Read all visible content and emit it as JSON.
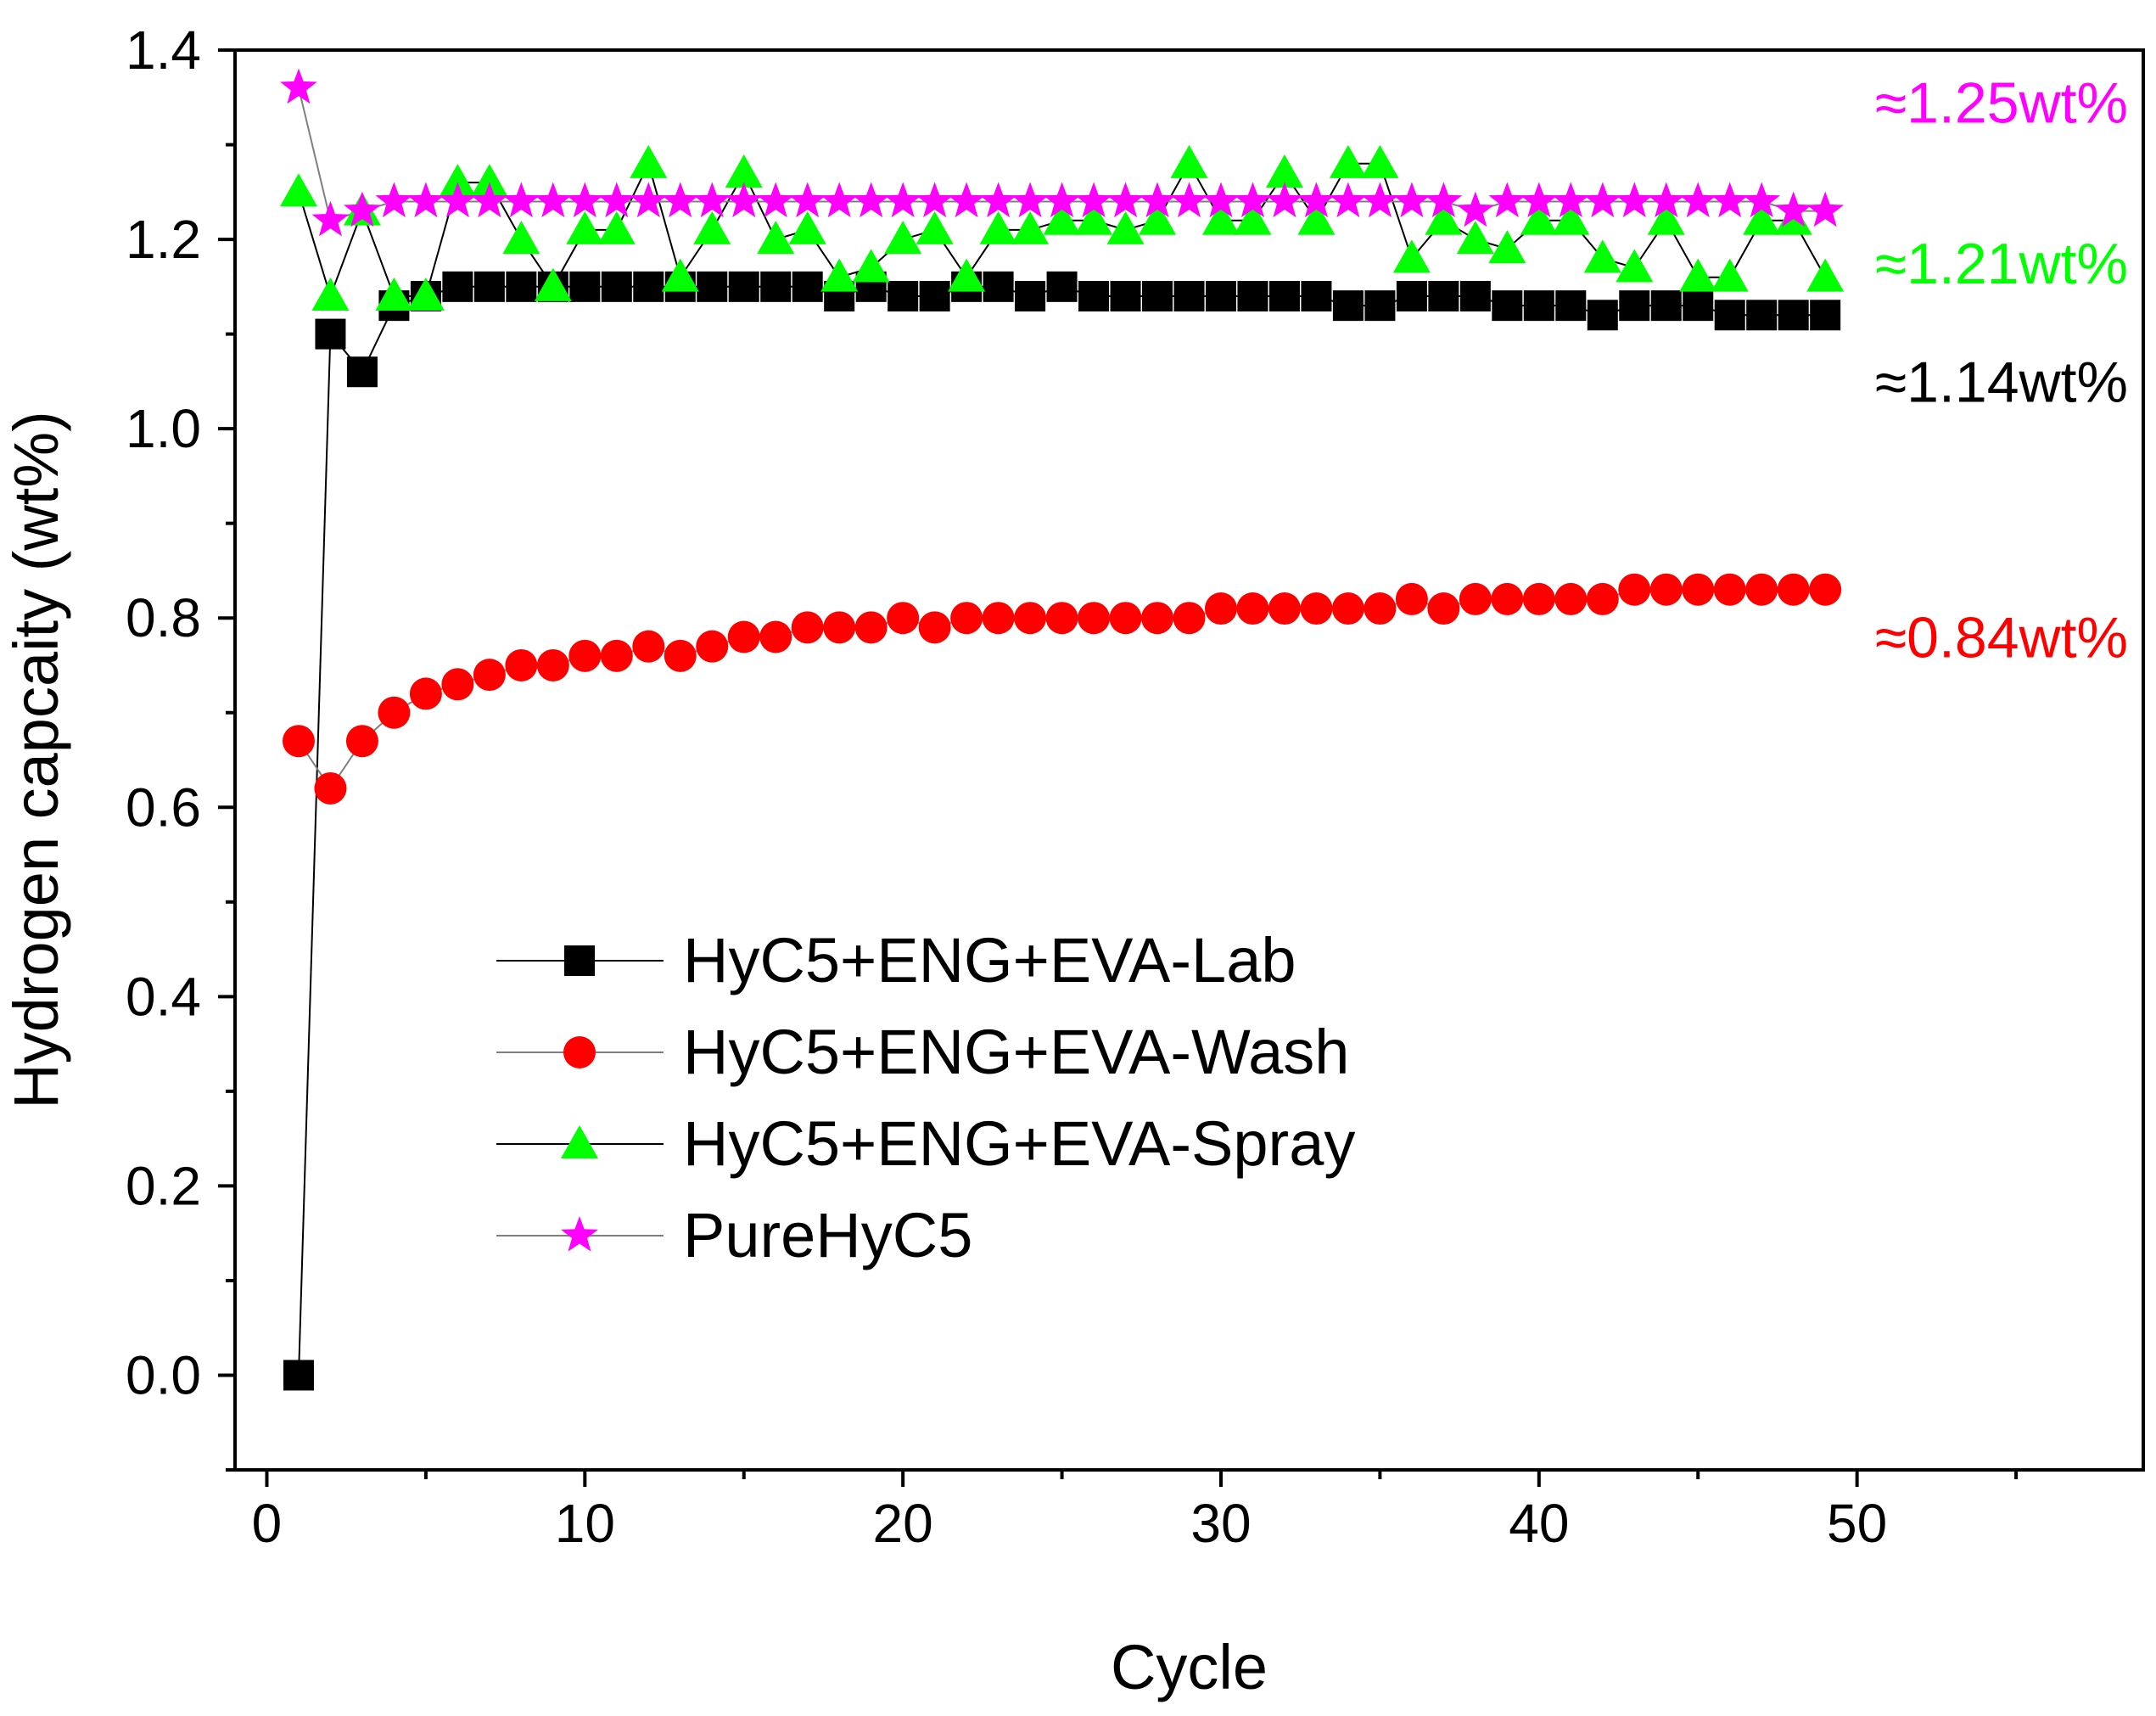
{
  "chart_data": {
    "type": "line",
    "xlabel": "Cycle",
    "ylabel": "Hydrogen capcaity (wt%)",
    "xlim": [
      -1,
      59
    ],
    "ylim": [
      -0.1,
      1.4
    ],
    "xticks": [
      0,
      10,
      20,
      30,
      40,
      50
    ],
    "yticks": [
      0.0,
      0.2,
      0.4,
      0.6,
      0.8,
      1.0,
      1.2,
      1.4
    ],
    "ytick_labels": [
      "0.0",
      "0.2",
      "0.4",
      "0.6",
      "0.8",
      "1.0",
      "1.2",
      "1.4"
    ],
    "grid": false,
    "legend_position": "center-left",
    "series": [
      {
        "name": "HyC5+ENG+EVA-Lab",
        "color": "#000000",
        "marker": "square",
        "x": [
          1,
          2,
          3,
          4,
          5,
          6,
          7,
          8,
          9,
          10,
          11,
          12,
          13,
          14,
          15,
          16,
          17,
          18,
          19,
          20,
          21,
          22,
          23,
          24,
          25,
          26,
          27,
          28,
          29,
          30,
          31,
          32,
          33,
          34,
          35,
          36,
          37,
          38,
          39,
          40,
          41,
          42,
          43,
          44,
          45,
          46,
          47,
          48,
          49
        ],
        "y": [
          0.0,
          1.1,
          1.06,
          1.13,
          1.14,
          1.15,
          1.15,
          1.15,
          1.15,
          1.15,
          1.15,
          1.15,
          1.15,
          1.15,
          1.15,
          1.15,
          1.15,
          1.14,
          1.15,
          1.14,
          1.14,
          1.15,
          1.15,
          1.14,
          1.15,
          1.14,
          1.14,
          1.14,
          1.14,
          1.14,
          1.14,
          1.14,
          1.14,
          1.13,
          1.13,
          1.14,
          1.14,
          1.14,
          1.13,
          1.13,
          1.13,
          1.12,
          1.13,
          1.13,
          1.13,
          1.12,
          1.12,
          1.12,
          1.12
        ]
      },
      {
        "name": "HyC5+ENG+EVA-Wash",
        "color": "#ff0000",
        "marker": "circle",
        "x": [
          1,
          2,
          3,
          4,
          5,
          6,
          7,
          8,
          9,
          10,
          11,
          12,
          13,
          14,
          15,
          16,
          17,
          18,
          19,
          20,
          21,
          22,
          23,
          24,
          25,
          26,
          27,
          28,
          29,
          30,
          31,
          32,
          33,
          34,
          35,
          36,
          37,
          38,
          39,
          40,
          41,
          42,
          43,
          44,
          45,
          46,
          47,
          48,
          49
        ],
        "y": [
          0.67,
          0.62,
          0.67,
          0.7,
          0.72,
          0.73,
          0.74,
          0.75,
          0.75,
          0.76,
          0.76,
          0.77,
          0.76,
          0.77,
          0.78,
          0.78,
          0.79,
          0.79,
          0.79,
          0.8,
          0.79,
          0.8,
          0.8,
          0.8,
          0.8,
          0.8,
          0.8,
          0.8,
          0.8,
          0.81,
          0.81,
          0.81,
          0.81,
          0.81,
          0.81,
          0.82,
          0.81,
          0.82,
          0.82,
          0.82,
          0.82,
          0.82,
          0.83,
          0.83,
          0.83,
          0.83,
          0.83,
          0.83,
          0.83
        ]
      },
      {
        "name": "HyC5+ENG+EVA-Spray",
        "color": "#00ff00",
        "marker": "triangle",
        "x": [
          1,
          2,
          3,
          4,
          5,
          6,
          7,
          8,
          9,
          10,
          11,
          12,
          13,
          14,
          15,
          16,
          17,
          18,
          19,
          20,
          21,
          22,
          23,
          24,
          25,
          26,
          27,
          28,
          29,
          30,
          31,
          32,
          33,
          34,
          35,
          36,
          37,
          38,
          39,
          40,
          41,
          42,
          43,
          44,
          45,
          46,
          47,
          48,
          49
        ],
        "y": [
          1.25,
          1.14,
          1.23,
          1.14,
          1.14,
          1.26,
          1.26,
          1.2,
          1.15,
          1.21,
          1.21,
          1.28,
          1.16,
          1.21,
          1.27,
          1.2,
          1.21,
          1.16,
          1.17,
          1.2,
          1.21,
          1.16,
          1.21,
          1.21,
          1.22,
          1.22,
          1.21,
          1.22,
          1.28,
          1.22,
          1.22,
          1.27,
          1.22,
          1.28,
          1.28,
          1.18,
          1.22,
          1.2,
          1.19,
          1.22,
          1.22,
          1.18,
          1.17,
          1.22,
          1.16,
          1.16,
          1.22,
          1.22,
          1.16
        ]
      },
      {
        "name": "PureHyC5",
        "color": "#ff00ff",
        "marker": "star",
        "x": [
          1,
          2,
          3,
          4,
          5,
          6,
          7,
          8,
          9,
          10,
          11,
          12,
          13,
          14,
          15,
          16,
          17,
          18,
          19,
          20,
          21,
          22,
          23,
          24,
          25,
          26,
          27,
          28,
          29,
          30,
          31,
          32,
          33,
          34,
          35,
          36,
          37,
          38,
          39,
          40,
          41,
          42,
          43,
          44,
          45,
          46,
          47,
          48,
          49
        ],
        "y": [
          1.36,
          1.22,
          1.23,
          1.24,
          1.24,
          1.24,
          1.24,
          1.24,
          1.24,
          1.24,
          1.24,
          1.24,
          1.24,
          1.24,
          1.24,
          1.24,
          1.24,
          1.24,
          1.24,
          1.24,
          1.24,
          1.24,
          1.24,
          1.24,
          1.24,
          1.24,
          1.24,
          1.24,
          1.24,
          1.24,
          1.24,
          1.24,
          1.24,
          1.24,
          1.24,
          1.24,
          1.24,
          1.23,
          1.24,
          1.24,
          1.24,
          1.24,
          1.24,
          1.24,
          1.24,
          1.24,
          1.24,
          1.23,
          1.23
        ]
      }
    ],
    "annotations": [
      {
        "text": "≈1.25wt%",
        "color": "#ff00ff",
        "y": 1.345
      },
      {
        "text": "≈1.21wt%",
        "color": "#00ff00",
        "y": 1.175
      },
      {
        "text": "≈1.14wt%",
        "color": "#000000",
        "y": 1.05
      },
      {
        "text": "≈0.84wt%",
        "color": "#ff0000",
        "y": 0.78
      }
    ]
  }
}
